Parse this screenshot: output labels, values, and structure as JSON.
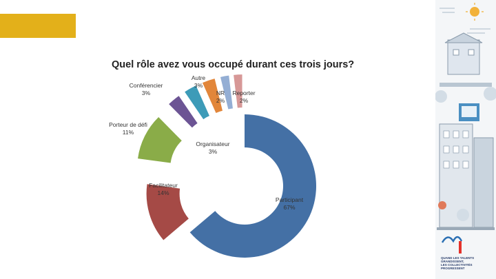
{
  "chart_data": {
    "type": "pie",
    "title": "Quel rôle avez vous occupé durant ces trois jours?",
    "slices": [
      {
        "label": "Participant",
        "value": 67,
        "pct_label": "67%",
        "color": "#4470a5"
      },
      {
        "label": "Facilitateur",
        "value": 14,
        "pct_label": "14%",
        "color": "#a54a46"
      },
      {
        "label": "Porteur de défi",
        "value": 11,
        "pct_label": "11%",
        "color": "#8aac48"
      },
      {
        "label": "Conférencier",
        "value": 3,
        "pct_label": "3%",
        "color": "#6c5494"
      },
      {
        "label": "Organisateur",
        "value": 3,
        "pct_label": "3%",
        "color": "#3d9bb8"
      },
      {
        "label": "Autre",
        "value": 3,
        "pct_label": "3%",
        "color": "#e2863a"
      },
      {
        "label": "NR",
        "value": 2,
        "pct_label": "2%",
        "color": "#94aed4"
      },
      {
        "label": "Reporter",
        "value": 2,
        "pct_label": "2%",
        "color": "#d79897"
      }
    ]
  },
  "side_panel": {
    "logo_lines": [
      "QUAND LES TALENTS",
      "GRANDISSENT,",
      "LES COLLECTIVITÉS",
      "PROGRESSENT"
    ]
  }
}
